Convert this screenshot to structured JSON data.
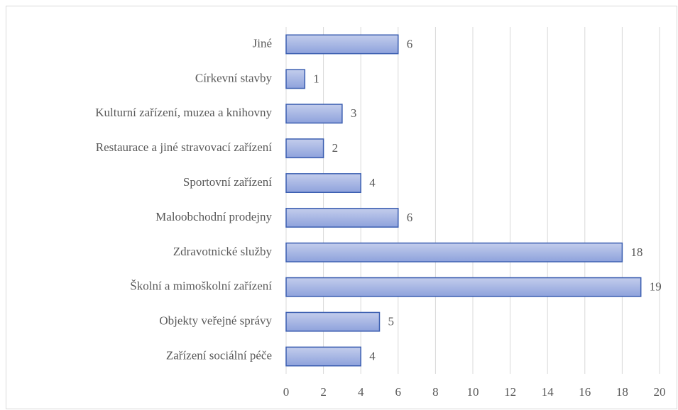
{
  "chart_data": {
    "type": "barh",
    "categories": [
      "Jiné",
      "Církevní stavby",
      "Kulturní zařízení, muzea a knihovny",
      "Restaurace a jiné stravovací zařízení",
      "Sportovní zařízení",
      "Maloobchodní prodejny",
      "Zdravotnické služby",
      "Školní a mimoškolní zařízení",
      "Objekty veřejné správy",
      "Zařízení sociální péče"
    ],
    "values": [
      6,
      1,
      3,
      2,
      4,
      6,
      18,
      19,
      5,
      4
    ],
    "color": "#8ea2dc",
    "edge_color": "#3b5eb0",
    "xlim": [
      0,
      20
    ],
    "xticks": [
      0,
      2,
      4,
      6,
      8,
      10,
      12,
      14,
      16,
      18,
      20
    ],
    "grid": true
  }
}
